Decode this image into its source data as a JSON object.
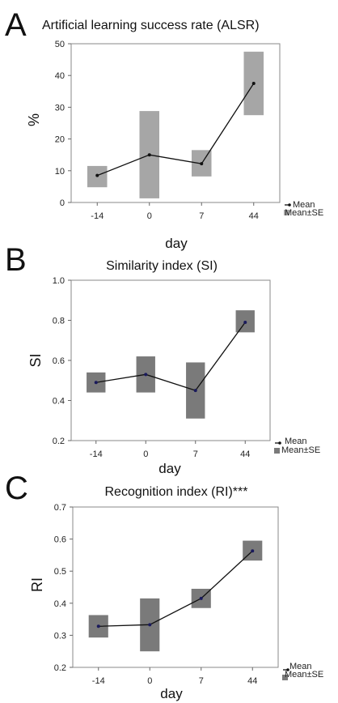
{
  "chart_data": [
    {
      "panel": "A",
      "type": "line",
      "title": "Artificial learning success rate (ALSR)",
      "xlabel": "day",
      "ylabel": "%",
      "categories": [
        "-14",
        "0",
        "7",
        "44"
      ],
      "yticks": [
        "0",
        "10",
        "20",
        "30",
        "40",
        "50"
      ],
      "ylim": [
        0,
        50
      ],
      "mean": [
        8.5,
        15,
        12.2,
        37.5
      ],
      "se_low": [
        4.8,
        1.3,
        8.2,
        27.5
      ],
      "se_high": [
        11.5,
        28.8,
        16.5,
        47.5
      ],
      "box_color": "#a6a6a6",
      "legend": [
        "Mean",
        "Mean±SE"
      ]
    },
    {
      "panel": "B",
      "type": "line",
      "title": "Similarity index (SI)",
      "xlabel": "day",
      "ylabel": "SI",
      "categories": [
        "-14",
        "0",
        "7",
        "44"
      ],
      "yticks": [
        "0.2",
        "0.4",
        "0.6",
        "0.8",
        "1.0"
      ],
      "ylim": [
        0.2,
        1.0
      ],
      "mean": [
        0.49,
        0.53,
        0.45,
        0.79
      ],
      "se_low": [
        0.44,
        0.44,
        0.31,
        0.74
      ],
      "se_high": [
        0.54,
        0.62,
        0.59,
        0.85
      ],
      "box_color": "#7a7a7a",
      "legend": [
        "Mean",
        "Mean±SE"
      ]
    },
    {
      "panel": "C",
      "type": "line",
      "title": "Recognition index (RI)***",
      "xlabel": "day",
      "ylabel": "RI",
      "categories": [
        "-14",
        "0",
        "7",
        "44"
      ],
      "yticks": [
        "0.2",
        "0.3",
        "0.4",
        "0.5",
        "0.6",
        "0.7"
      ],
      "ylim": [
        0.2,
        0.7
      ],
      "mean": [
        0.328,
        0.333,
        0.415,
        0.563
      ],
      "se_low": [
        0.293,
        0.25,
        0.385,
        0.533
      ],
      "se_high": [
        0.363,
        0.415,
        0.445,
        0.595
      ],
      "box_color": "#7a7a7a",
      "legend": [
        "Mean",
        "Mean±SE"
      ]
    }
  ]
}
